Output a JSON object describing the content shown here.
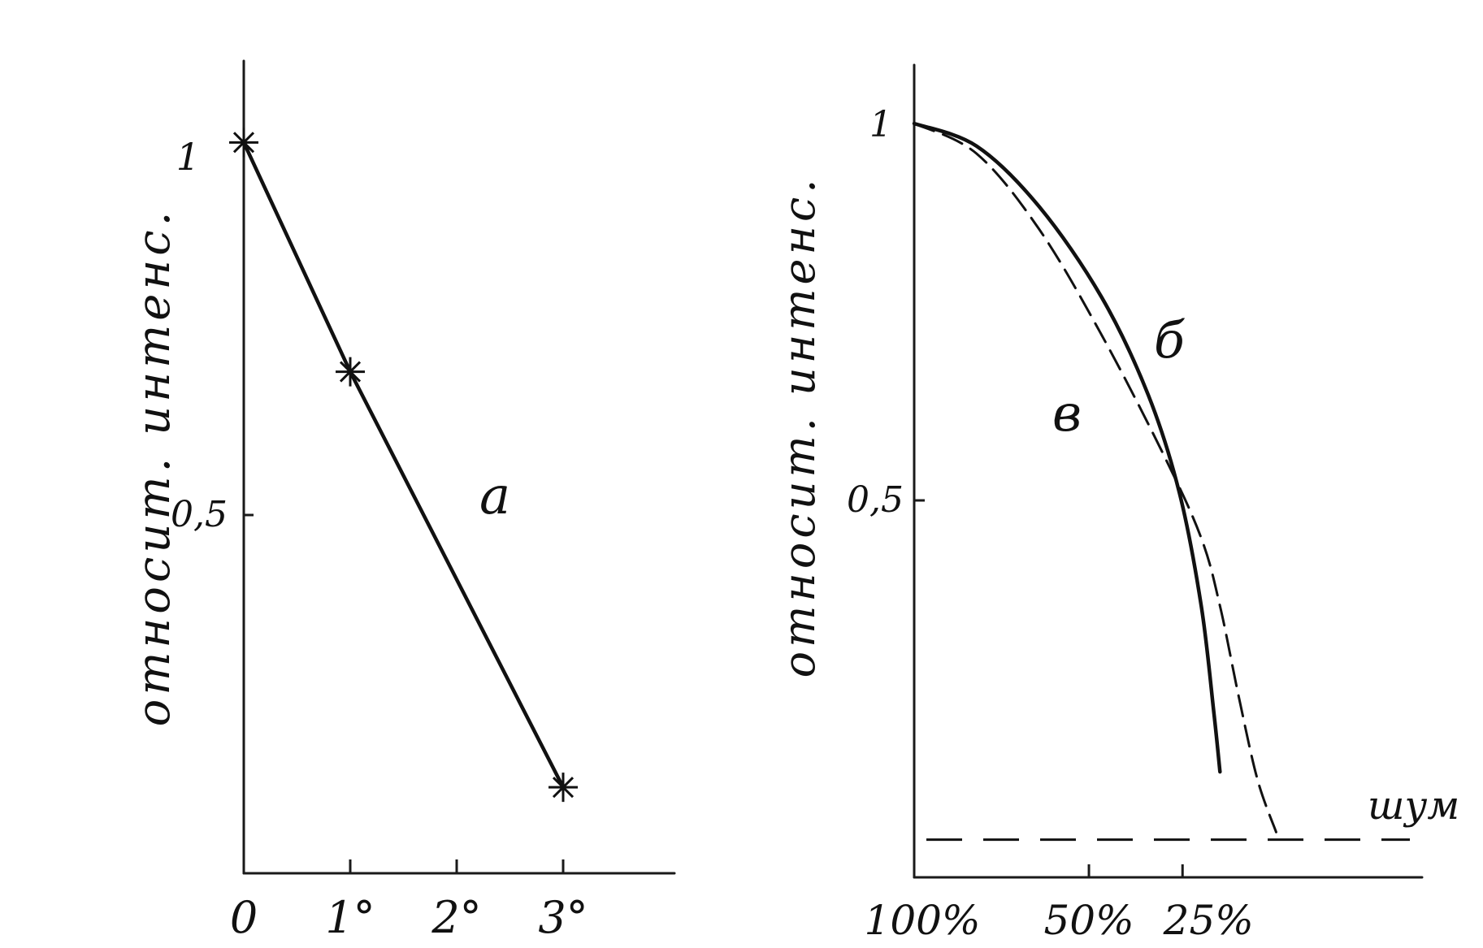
{
  "chart_data": [
    {
      "type": "line",
      "title": "",
      "xlabel": "",
      "ylabel": "относит. интенс.",
      "x_tick_labels": [
        "0",
        "1°",
        "2°",
        "3°"
      ],
      "y_tick_labels": [
        "1",
        "0,5"
      ],
      "xlim": [
        0,
        4
      ],
      "ylim": [
        0,
        1.1
      ],
      "grid": false,
      "series": [
        {
          "name": "а",
          "style": "solid",
          "marker": "star",
          "x": [
            0,
            1,
            3
          ],
          "y": [
            1.02,
            0.7,
            0.12
          ]
        }
      ]
    },
    {
      "type": "line",
      "title": "",
      "xlabel": "",
      "ylabel": "относит. интенс.",
      "x_tick_labels": [
        "100%",
        "50%",
        "25%"
      ],
      "y_tick_labels": [
        "1",
        "0,5"
      ],
      "xlim": [
        0,
        1.65
      ],
      "ylim": [
        0,
        1.1
      ],
      "grid": false,
      "noise_label": "шум",
      "noise_level": 0.05,
      "series": [
        {
          "name": "б",
          "style": "solid",
          "x": [
            0,
            0.2,
            0.4,
            0.6,
            0.75,
            0.85,
            0.92,
            0.96,
            0.98
          ],
          "y": [
            1.0,
            0.97,
            0.89,
            0.77,
            0.64,
            0.51,
            0.36,
            0.22,
            0.14
          ]
        },
        {
          "name": "в",
          "style": "dashed",
          "x": [
            0,
            0.2,
            0.4,
            0.6,
            0.8,
            0.92,
            0.98,
            1.04,
            1.1,
            1.16
          ],
          "y": [
            1.0,
            0.96,
            0.86,
            0.72,
            0.56,
            0.45,
            0.36,
            0.24,
            0.13,
            0.06
          ]
        }
      ]
    }
  ]
}
